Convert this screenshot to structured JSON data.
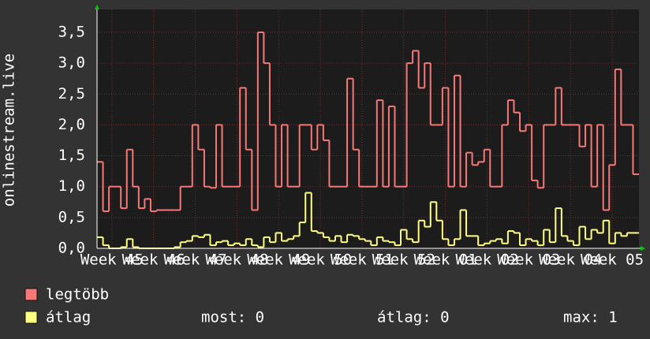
{
  "chart_data": {
    "type": "step",
    "y_label": "onlinestream.live",
    "categories": [
      null,
      null,
      "Week 45",
      null,
      null,
      null,
      null,
      null,
      null,
      "Week 46",
      null,
      null,
      null,
      null,
      null,
      null,
      "Week 47",
      null,
      null,
      null,
      null,
      null,
      null,
      "Week 48",
      null,
      null,
      null,
      null,
      null,
      null,
      "Week 49",
      null,
      null,
      null,
      null,
      null,
      null,
      "Week 50",
      null,
      null,
      null,
      null,
      null,
      null,
      "Week 51",
      null,
      null,
      null,
      null,
      null,
      null,
      "Week 52",
      null,
      null,
      null,
      null,
      null,
      null,
      "Week 01",
      null,
      null,
      null,
      null,
      null,
      null,
      "Week 02",
      null,
      null,
      null,
      null,
      null,
      null,
      "Week 03",
      null,
      null,
      null,
      null,
      null,
      null,
      "Week 04",
      null,
      null,
      null,
      null,
      null,
      null,
      "Week 05",
      null,
      null,
      null,
      null
    ],
    "series": [
      {
        "name": "legtöbb",
        "color": "#f87878",
        "values": [
          1.4,
          0.6,
          1.0,
          1.0,
          0.65,
          1.6,
          1.0,
          0.65,
          0.8,
          0.6,
          0.62,
          0.62,
          0.62,
          0.62,
          1.0,
          1.0,
          2.0,
          1.6,
          1.0,
          0.98,
          2.0,
          1.0,
          1.0,
          1.0,
          2.6,
          1.6,
          0.62,
          3.5,
          3.0,
          2.0,
          1.0,
          2.0,
          1.0,
          1.0,
          2.0,
          2.0,
          1.6,
          2.0,
          1.75,
          1.0,
          1.0,
          1.0,
          2.75,
          1.6,
          1.0,
          1.0,
          1.0,
          2.4,
          1.0,
          2.3,
          1.0,
          1.0,
          3.0,
          3.2,
          2.6,
          3.0,
          2.0,
          2.0,
          2.6,
          1.0,
          2.8,
          1.0,
          1.55,
          1.35,
          1.4,
          1.6,
          1.0,
          1.0,
          2.0,
          2.4,
          2.2,
          1.9,
          2.0,
          1.1,
          0.98,
          2.0,
          2.0,
          2.6,
          2.0,
          2.0,
          2.0,
          1.65,
          2.0,
          1.0,
          2.0,
          0.62,
          1.35,
          2.9,
          2.0,
          2.0,
          1.2
        ]
      },
      {
        "name": "átlag",
        "color": "#ffff80",
        "values": [
          0.18,
          0.05,
          0,
          0,
          0.02,
          0.15,
          0.02,
          0,
          0,
          0,
          0,
          0,
          0,
          0.02,
          0.1,
          0.12,
          0.2,
          0.18,
          0.22,
          0.05,
          0.1,
          0.12,
          0.05,
          0.08,
          0.05,
          0.15,
          0.05,
          0.02,
          0.18,
          0.1,
          0.25,
          0.12,
          0.15,
          0.2,
          0.42,
          0.9,
          0.28,
          0.25,
          0.18,
          0.12,
          0.2,
          0.1,
          0.22,
          0.2,
          0.15,
          0.12,
          0.05,
          0.18,
          0.12,
          0.1,
          0.05,
          0.3,
          0.15,
          0.1,
          0.45,
          0.35,
          0.75,
          0.45,
          0.15,
          0.05,
          0.15,
          0.62,
          0.2,
          0.2,
          0.05,
          0.08,
          0.12,
          0.15,
          0.08,
          0.28,
          0.25,
          0.05,
          0.15,
          0.12,
          0.05,
          0.3,
          0.1,
          0.65,
          0.2,
          0.12,
          0.05,
          0.35,
          0.15,
          0.3,
          0.25,
          0.45,
          0.08,
          0.25,
          0.2,
          0.25,
          0.25
        ]
      }
    ],
    "ylim": [
      0,
      3.87
    ],
    "yticks": [
      {
        "value": 0,
        "label": "0,0"
      },
      {
        "value": 0.5,
        "label": "0,5"
      },
      {
        "value": 1,
        "label": "1,0"
      },
      {
        "value": 1.5,
        "label": "1,5"
      },
      {
        "value": 2,
        "label": "2,0"
      },
      {
        "value": 2.5,
        "label": "2,5"
      },
      {
        "value": 3,
        "label": "3,0"
      },
      {
        "value": 3.5,
        "label": "3,5"
      }
    ],
    "grid": true,
    "stats": [
      "most: 0",
      "átlag: 0",
      "max: 1"
    ]
  }
}
